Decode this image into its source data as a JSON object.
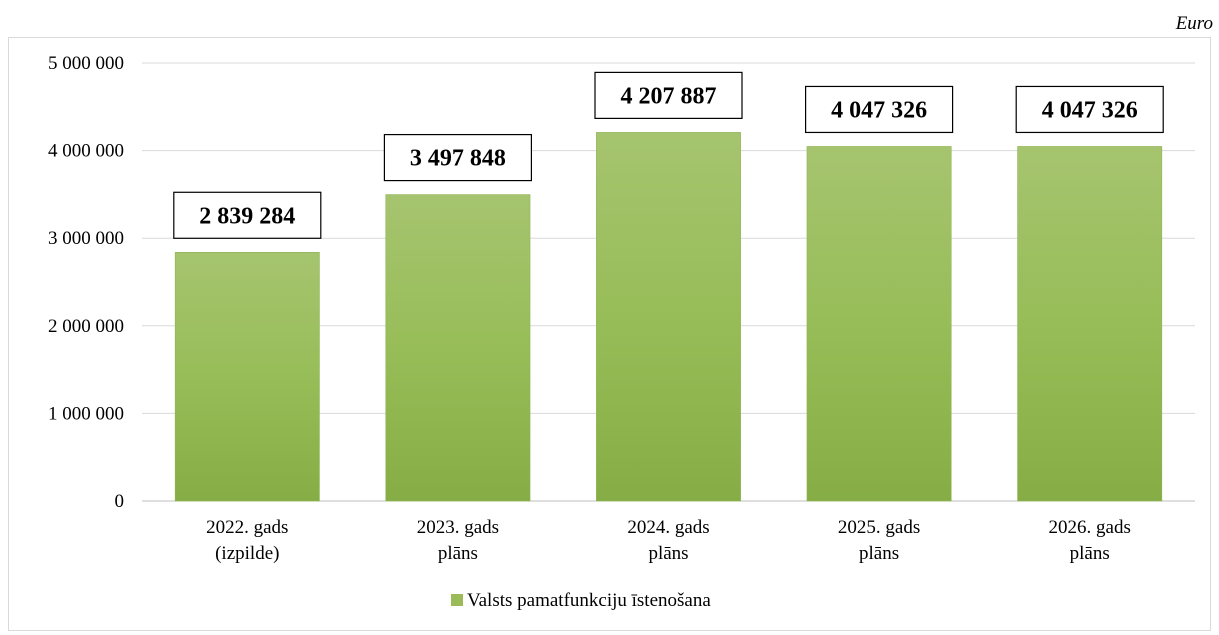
{
  "unit_label": "Euro",
  "chart_data": {
    "type": "bar",
    "categories": [
      [
        "2022. gads",
        "(izpilde)"
      ],
      [
        "2023. gads",
        "plāns"
      ],
      [
        "2024. gads",
        "plāns"
      ],
      [
        "2025. gads",
        "plāns"
      ],
      [
        "2026. gads",
        "plāns"
      ]
    ],
    "series": [
      {
        "name": "Valsts pamatfunkciju īstenošana",
        "values": [
          2839284,
          3497848,
          4207887,
          4047326,
          4047326
        ],
        "data_labels": [
          "2 839 284",
          "3 497 848",
          "4 207 887",
          "4 047 326",
          "4 047 326"
        ],
        "color": "#9bbb59"
      }
    ],
    "y_ticks": [
      "0",
      "1 000 000",
      "2 000 000",
      "3 000 000",
      "4 000 000",
      "5 000 000"
    ],
    "ylim": [
      0,
      5000000
    ],
    "grid": true,
    "legend_position": "bottom"
  }
}
